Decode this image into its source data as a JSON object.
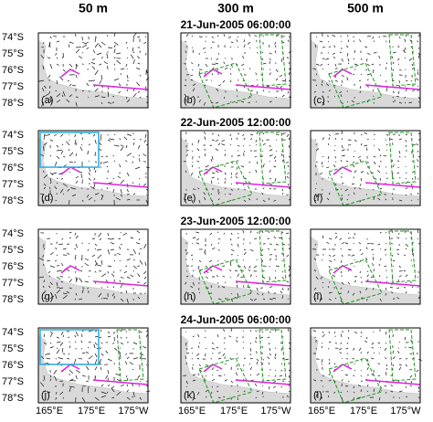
{
  "columns": [
    "50 m",
    "300 m",
    "500 m"
  ],
  "rows": [
    {
      "date": "21-Jun-2005 06:00:00",
      "panels": [
        "(a)",
        "(b)",
        "(c)"
      ]
    },
    {
      "date": "22-Jun-2005 12:00:00",
      "panels": [
        "(d)",
        "(e)",
        "(f)"
      ]
    },
    {
      "date": "23-Jun-2005 12:00:00",
      "panels": [
        "(g)",
        "(h)",
        "(i)"
      ]
    },
    {
      "date": "24-Jun-2005 06:00:00",
      "panels": [
        "(j)",
        "(k)",
        "(l)"
      ]
    }
  ],
  "lat_labels": [
    "74°S",
    "75°S",
    "76°S",
    "77°S",
    "78°S"
  ],
  "lon_labels": [
    "165°E",
    "175°E",
    "175°W"
  ]
}
